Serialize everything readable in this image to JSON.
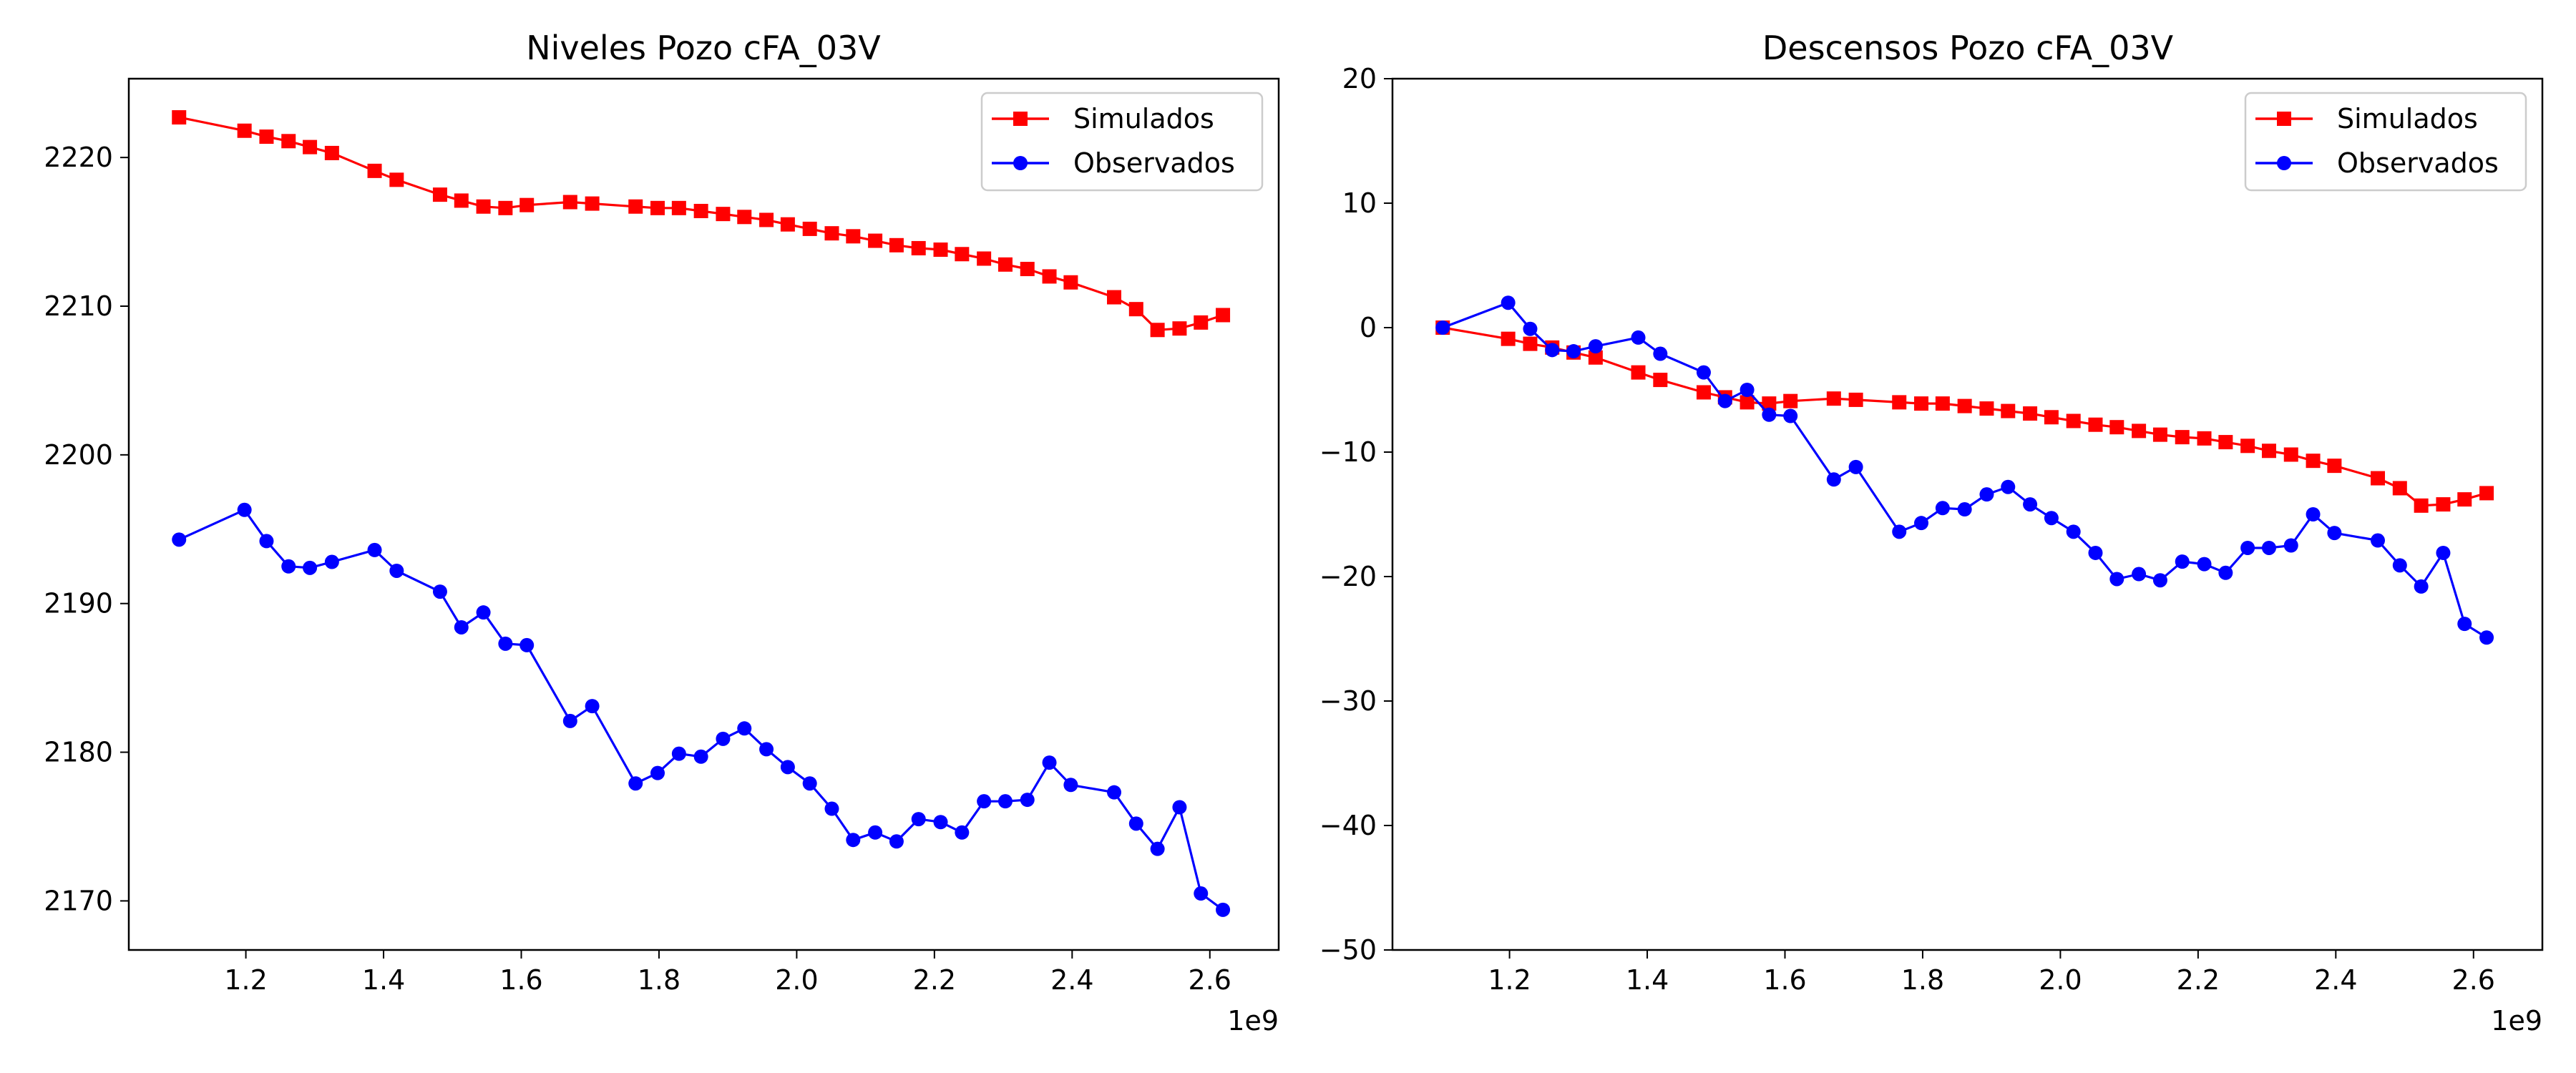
{
  "colors": {
    "simulados": "#ff0000",
    "observados": "#0000ff",
    "axes": "#000000",
    "legend_border": "#cccccc",
    "background": "#ffffff"
  },
  "chart_data": [
    {
      "type": "line",
      "title": "Niveles Pozo cFA_03V",
      "xlabel": "",
      "ylabel": "",
      "x_offset_text": "1e9",
      "xlim": [
        1.03,
        2.7
      ],
      "ylim": [
        2166.7,
        2225.3
      ],
      "xticks": [
        1.2,
        1.4,
        1.6,
        1.8,
        2.0,
        2.2,
        2.4,
        2.6
      ],
      "xtick_labels": [
        "1.2",
        "1.4",
        "1.6",
        "1.8",
        "2.0",
        "2.2",
        "2.4",
        "2.6"
      ],
      "yticks": [
        2170,
        2180,
        2190,
        2200,
        2210,
        2220
      ],
      "ytick_labels": [
        "2170",
        "2180",
        "2190",
        "2200",
        "2210",
        "2220"
      ],
      "grid": false,
      "legend": "top-right",
      "series": [
        {
          "name": "Simulados",
          "marker": "square",
          "color": "#ff0000",
          "x": [
            1.103,
            1.198,
            1.23,
            1.262,
            1.293,
            1.325,
            1.387,
            1.419,
            1.482,
            1.513,
            1.545,
            1.577,
            1.608,
            1.671,
            1.703,
            1.766,
            1.798,
            1.829,
            1.861,
            1.893,
            1.924,
            1.956,
            1.987,
            2.019,
            2.051,
            2.082,
            2.114,
            2.145,
            2.177,
            2.209,
            2.24,
            2.272,
            2.303,
            2.335,
            2.367,
            2.398,
            2.461,
            2.493,
            2.524,
            2.556,
            2.587,
            2.619
          ],
          "y": [
            2222.7,
            2221.8,
            2221.4,
            2221.1,
            2220.7,
            2220.3,
            2219.1,
            2218.5,
            2217.5,
            2217.1,
            2216.7,
            2216.6,
            2216.8,
            2217.0,
            2216.9,
            2216.7,
            2216.6,
            2216.6,
            2216.4,
            2216.2,
            2216.0,
            2215.8,
            2215.5,
            2215.2,
            2214.9,
            2214.7,
            2214.4,
            2214.1,
            2213.9,
            2213.8,
            2213.5,
            2213.2,
            2212.8,
            2212.5,
            2212.0,
            2211.6,
            2210.6,
            2209.8,
            2208.4,
            2208.5,
            2208.9,
            2209.4
          ]
        },
        {
          "name": "Observados",
          "marker": "circle",
          "color": "#0000ff",
          "x": [
            1.103,
            1.198,
            1.23,
            1.262,
            1.293,
            1.325,
            1.387,
            1.419,
            1.482,
            1.513,
            1.545,
            1.577,
            1.608,
            1.671,
            1.703,
            1.766,
            1.798,
            1.829,
            1.861,
            1.893,
            1.924,
            1.956,
            1.987,
            2.019,
            2.051,
            2.082,
            2.114,
            2.145,
            2.177,
            2.209,
            2.24,
            2.272,
            2.303,
            2.335,
            2.367,
            2.398,
            2.461,
            2.493,
            2.524,
            2.556,
            2.587,
            2.619
          ],
          "y": [
            2194.3,
            2196.3,
            2194.2,
            2192.5,
            2192.4,
            2192.8,
            2193.6,
            2192.2,
            2190.8,
            2188.4,
            2189.4,
            2187.3,
            2187.2,
            2182.1,
            2183.1,
            2177.9,
            2178.6,
            2179.9,
            2179.7,
            2180.9,
            2181.6,
            2180.2,
            2179.0,
            2177.9,
            2176.2,
            2174.1,
            2174.6,
            2174.0,
            2175.5,
            2175.3,
            2174.6,
            2176.7,
            2176.7,
            2176.8,
            2179.3,
            2177.8,
            2177.3,
            2175.2,
            2173.5,
            2176.3,
            2170.5,
            2169.4
          ]
        }
      ]
    },
    {
      "type": "line",
      "title": "Descensos Pozo cFA_03V",
      "xlabel": "",
      "ylabel": "",
      "x_offset_text": "1e9",
      "xlim": [
        1.03,
        2.7
      ],
      "ylim": [
        -50,
        20
      ],
      "xticks": [
        1.2,
        1.4,
        1.6,
        1.8,
        2.0,
        2.2,
        2.4,
        2.6
      ],
      "xtick_labels": [
        "1.2",
        "1.4",
        "1.6",
        "1.8",
        "2.0",
        "2.2",
        "2.4",
        "2.6"
      ],
      "yticks": [
        -50,
        -40,
        -30,
        -20,
        -10,
        0,
        10,
        20
      ],
      "ytick_labels": [
        "−50",
        "−40",
        "−30",
        "−20",
        "−10",
        "0",
        "10",
        "20"
      ],
      "grid": false,
      "legend": "top-right",
      "series": [
        {
          "name": "Simulados",
          "marker": "square",
          "color": "#ff0000",
          "x": [
            1.103,
            1.198,
            1.23,
            1.262,
            1.293,
            1.325,
            1.387,
            1.419,
            1.482,
            1.513,
            1.545,
            1.577,
            1.608,
            1.671,
            1.703,
            1.766,
            1.798,
            1.829,
            1.861,
            1.893,
            1.924,
            1.956,
            1.987,
            2.019,
            2.051,
            2.082,
            2.114,
            2.145,
            2.177,
            2.209,
            2.24,
            2.272,
            2.303,
            2.335,
            2.367,
            2.398,
            2.461,
            2.493,
            2.524,
            2.556,
            2.587,
            2.619
          ],
          "y": [
            0.0,
            -0.9,
            -1.3,
            -1.6,
            -2.0,
            -2.4,
            -3.6,
            -4.2,
            -5.2,
            -5.6,
            -6.0,
            -6.1,
            -5.9,
            -5.7,
            -5.8,
            -6.0,
            -6.1,
            -6.1,
            -6.3,
            -6.5,
            -6.7,
            -6.9,
            -7.2,
            -7.5,
            -7.8,
            -8.0,
            -8.3,
            -8.6,
            -8.8,
            -8.9,
            -9.2,
            -9.5,
            -9.9,
            -10.2,
            -10.7,
            -11.1,
            -12.1,
            -12.9,
            -14.3,
            -14.2,
            -13.8,
            -13.3
          ]
        },
        {
          "name": "Observados",
          "marker": "circle",
          "color": "#0000ff",
          "x": [
            1.103,
            1.198,
            1.23,
            1.262,
            1.293,
            1.325,
            1.387,
            1.419,
            1.482,
            1.513,
            1.545,
            1.577,
            1.608,
            1.671,
            1.703,
            1.766,
            1.798,
            1.829,
            1.861,
            1.893,
            1.924,
            1.956,
            1.987,
            2.019,
            2.051,
            2.082,
            2.114,
            2.145,
            2.177,
            2.209,
            2.24,
            2.272,
            2.303,
            2.335,
            2.367,
            2.398,
            2.461,
            2.493,
            2.524,
            2.556,
            2.587,
            2.619
          ],
          "y": [
            0.0,
            2.0,
            -0.1,
            -1.8,
            -1.9,
            -1.5,
            -0.8,
            -2.1,
            -3.6,
            -5.9,
            -5.0,
            -7.0,
            -7.1,
            -12.2,
            -11.2,
            -16.4,
            -15.7,
            -14.5,
            -14.6,
            -13.4,
            -12.8,
            -14.2,
            -15.3,
            -16.4,
            -18.1,
            -20.2,
            -19.8,
            -20.3,
            -18.8,
            -19.0,
            -19.7,
            -17.7,
            -17.7,
            -17.5,
            -15.0,
            -16.5,
            -17.1,
            -19.1,
            -20.8,
            -18.1,
            -23.8,
            -24.9
          ]
        }
      ]
    }
  ]
}
